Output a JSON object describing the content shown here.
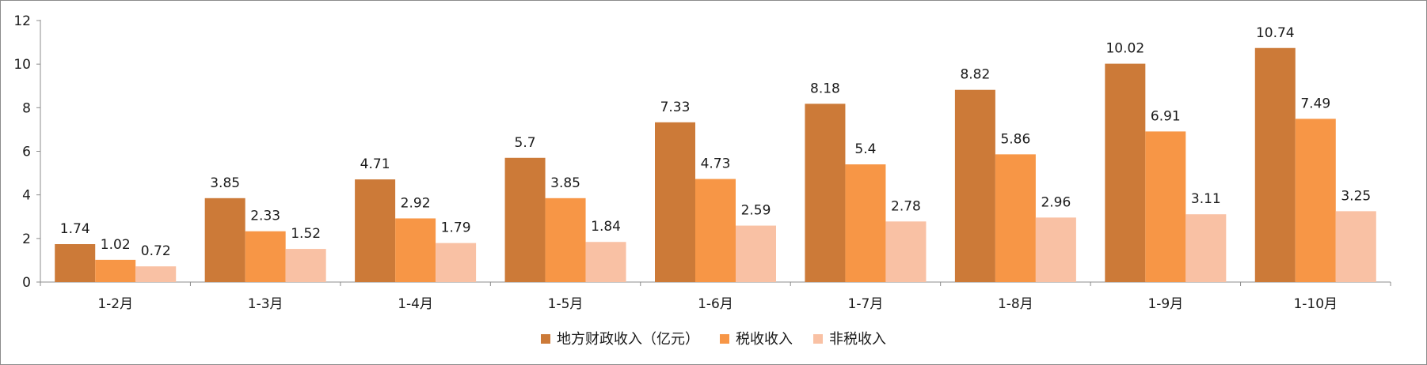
{
  "chart_data": {
    "type": "bar",
    "categories": [
      "1-2月",
      "1-3月",
      "1-4月",
      "1-5月",
      "1-6月",
      "1-7月",
      "1-8月",
      "1-9月",
      "1-10月"
    ],
    "series": [
      {
        "name": "地方财政收入（亿元）",
        "color": "#cc7a38",
        "values": [
          1.74,
          3.85,
          4.71,
          5.7,
          7.33,
          8.18,
          8.82,
          10.02,
          10.74
        ]
      },
      {
        "name": "税收收入",
        "color": "#f79646",
        "values": [
          1.02,
          2.33,
          2.92,
          3.85,
          4.73,
          5.4,
          5.86,
          6.91,
          7.49
        ]
      },
      {
        "name": "非税收入",
        "color": "#f9c1a4",
        "values": [
          0.72,
          1.52,
          1.79,
          1.84,
          2.59,
          2.78,
          2.96,
          3.11,
          3.25
        ]
      }
    ],
    "yticks": [
      "0",
      "2",
      "4",
      "6",
      "8",
      "10",
      "12"
    ],
    "ylim": [
      0,
      12
    ],
    "grid": false,
    "legend": "bottom-center",
    "data_labels": [
      [
        "1.74",
        "3.85",
        "4.71",
        "5.7",
        "7.33",
        "8.18",
        "8.82",
        "10.02",
        "10.74"
      ],
      [
        "1.02",
        "2.33",
        "2.92",
        "3.85",
        "4.73",
        "5.4",
        "5.86",
        "6.91",
        "7.49"
      ],
      [
        "0.72",
        "1.52",
        "1.79",
        "1.84",
        "2.59",
        "2.78",
        "2.96",
        "3.11",
        "3.25"
      ]
    ]
  }
}
